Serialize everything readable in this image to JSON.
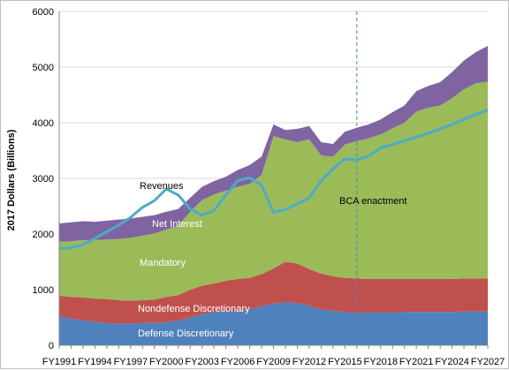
{
  "chart_data": {
    "type": "area",
    "stacked": true,
    "ylabel": "2017 Dollars (Billions)",
    "xlabel": "",
    "title": "",
    "ylim": [
      0,
      6000
    ],
    "y_ticks": [
      0,
      1000,
      2000,
      3000,
      4000,
      5000,
      6000
    ],
    "x_years": [
      1991,
      1992,
      1993,
      1994,
      1995,
      1996,
      1997,
      1998,
      1999,
      2000,
      2001,
      2002,
      2003,
      2004,
      2005,
      2006,
      2007,
      2008,
      2009,
      2010,
      2011,
      2012,
      2013,
      2014,
      2015,
      2016,
      2017,
      2018,
      2019,
      2020,
      2021,
      2022,
      2023,
      2024,
      2025,
      2026,
      2027
    ],
    "x_tick_labels": [
      "FY1991",
      "FY1994",
      "FY1997",
      "FY2000",
      "FY2003",
      "FY2006",
      "FY2009",
      "FY2012",
      "FY2015",
      "FY2018",
      "FY2021",
      "FY2024",
      "FY2027"
    ],
    "grid": true,
    "legend": "none",
    "series": [
      {
        "name": "Defense Discretionary",
        "color": "#4f81bd",
        "values": [
          520,
          480,
          450,
          420,
          400,
          390,
          390,
          400,
          400,
          420,
          440,
          500,
          560,
          600,
          620,
          620,
          650,
          700,
          750,
          770,
          760,
          710,
          650,
          620,
          600,
          590,
          590,
          590,
          590,
          600,
          600,
          600,
          600,
          600,
          610,
          610,
          610
        ]
      },
      {
        "name": "Nondefense Discretionary",
        "color": "#c0504d",
        "values": [
          370,
          390,
          410,
          420,
          430,
          420,
          410,
          410,
          420,
          450,
          460,
          500,
          510,
          510,
          540,
          570,
          560,
          580,
          630,
          730,
          710,
          660,
          640,
          620,
          610,
          610,
          600,
          600,
          600,
          590,
          590,
          590,
          590,
          590,
          590,
          590,
          590
        ]
      },
      {
        "name": "Mandatory",
        "color": "#9bbb59",
        "values": [
          970,
          1000,
          1030,
          1050,
          1070,
          1100,
          1130,
          1160,
          1190,
          1210,
          1250,
          1400,
          1540,
          1600,
          1620,
          1660,
          1690,
          1780,
          2380,
          2200,
          2180,
          2330,
          2120,
          2150,
          2400,
          2470,
          2530,
          2600,
          2710,
          2810,
          3010,
          3080,
          3120,
          3250,
          3400,
          3510,
          3540
        ]
      },
      {
        "name": "Net Interest",
        "color": "#8064a2",
        "values": [
          330,
          340,
          340,
          330,
          340,
          350,
          350,
          340,
          330,
          320,
          300,
          250,
          240,
          240,
          250,
          300,
          340,
          330,
          210,
          170,
          240,
          240,
          240,
          230,
          230,
          240,
          250,
          270,
          290,
          310,
          370,
          390,
          420,
          470,
          520,
          560,
          640
        ]
      }
    ],
    "overlay": {
      "name": "Revenues",
      "color": "#4bacc6",
      "values": [
        1740,
        1750,
        1810,
        1920,
        2040,
        2160,
        2300,
        2480,
        2600,
        2810,
        2700,
        2450,
        2340,
        2420,
        2700,
        2960,
        3010,
        2880,
        2390,
        2440,
        2540,
        2650,
        2960,
        3170,
        3350,
        3330,
        3400,
        3550,
        3610,
        3680,
        3740,
        3810,
        3890,
        3970,
        4060,
        4150,
        4230
      ]
    },
    "annotations": {
      "bca_label": "BCA enactment",
      "bca_year": 2016
    },
    "area_label_text": {
      "defense": "Defense Discretionary",
      "nondefense": "Nondefense Discretionary",
      "mandatory": "Mandatory",
      "interest": "Net Interest",
      "revenues": "Revenues"
    }
  }
}
